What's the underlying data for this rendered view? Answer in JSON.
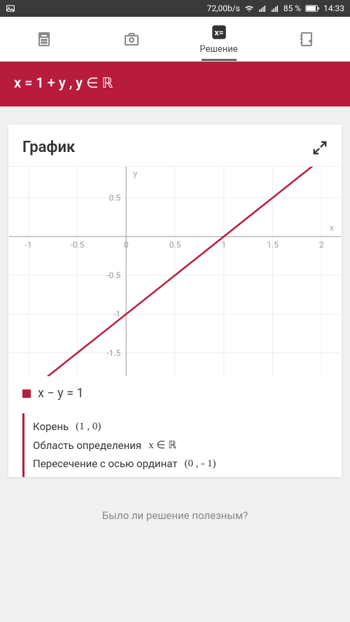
{
  "status": {
    "speed": "72,00b/s",
    "battery": "85 %",
    "time": "14:33"
  },
  "tabs": {
    "solution_label": "Решение"
  },
  "solution": {
    "equation_html": "x = 1 + y , y ∈ ℝ"
  },
  "graph": {
    "title": "График",
    "type": "line",
    "x_axis_label": "x",
    "y_axis_label": "y",
    "xlim": [
      -1.2,
      2.2
    ],
    "ylim": [
      -1.8,
      0.9
    ],
    "xticks": [
      -1,
      -0.5,
      0,
      0.5,
      1,
      1.5,
      2
    ],
    "yticks": [
      -1.5,
      -1,
      -0.5,
      0.5
    ],
    "line": {
      "p1": [
        -1.2,
        -2.2
      ],
      "p2": [
        2.2,
        1.2
      ]
    },
    "line_color": "#b71c3c",
    "grid_color": "#eeeeee",
    "axis_color": "#bbbbbb",
    "background_color": "#ffffff",
    "tick_fontsize": 12
  },
  "legend": {
    "equation": "x − y = 1",
    "swatch_color": "#b71c3c"
  },
  "info": {
    "root_label": "Корень",
    "root_value": "(1 , 0)",
    "domain_label": "Область определения",
    "domain_value": "x ∈ ℝ",
    "yintercept_label": "Пересечение с осью ординат",
    "yintercept_value": "(0 , - 1)"
  },
  "feedback": {
    "prompt": "Было ли решение полезным?"
  }
}
